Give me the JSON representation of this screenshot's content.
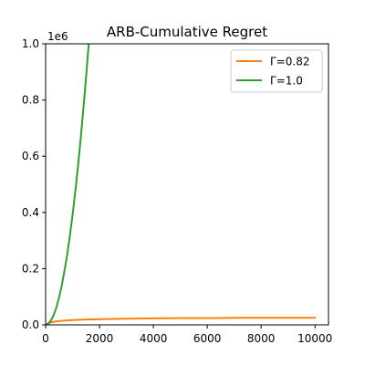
{
  "chart_data": {
    "type": "line",
    "title": "ARB-Cumulative Regret",
    "xlabel": "",
    "ylabel": "",
    "y_offset_label": "1e6",
    "xlim": [
      0,
      10500
    ],
    "ylim": [
      0,
      1.0
    ],
    "x_ticks": [
      0,
      2000,
      4000,
      6000,
      8000,
      10000
    ],
    "y_ticks": [
      0.0,
      0.2,
      0.4,
      0.6,
      0.8,
      1.0
    ],
    "x_tick_labels": [
      "0",
      "2000",
      "4000",
      "6000",
      "8000",
      "10000"
    ],
    "y_tick_labels": [
      "0.0",
      "0.2",
      "0.4",
      "0.6",
      "0.8",
      "1.0"
    ],
    "grid": false,
    "legend_position": "top-right",
    "series": [
      {
        "name": "Γ=0.82",
        "color": "#ff7f0e",
        "x": [
          0,
          100,
          300,
          500,
          1000,
          1500,
          2000,
          2500,
          3000,
          4000,
          5000,
          6000,
          7000,
          8000,
          9000,
          10000
        ],
        "y": [
          0.0,
          0.006,
          0.011,
          0.014,
          0.017,
          0.019,
          0.02,
          0.021,
          0.022,
          0.023,
          0.024,
          0.024,
          0.025,
          0.025,
          0.025,
          0.025
        ]
      },
      {
        "name": "Γ=1.0",
        "color": "#2ca02c",
        "x": [
          0,
          100,
          200,
          300,
          400,
          500,
          600,
          700,
          800,
          900,
          1000,
          1100,
          1200,
          1300,
          1400,
          1500,
          1600
        ],
        "y": [
          0.0,
          0.004,
          0.016,
          0.035,
          0.062,
          0.098,
          0.141,
          0.192,
          0.25,
          0.317,
          0.391,
          0.473,
          0.563,
          0.661,
          0.767,
          0.88,
          1.0
        ]
      }
    ]
  }
}
